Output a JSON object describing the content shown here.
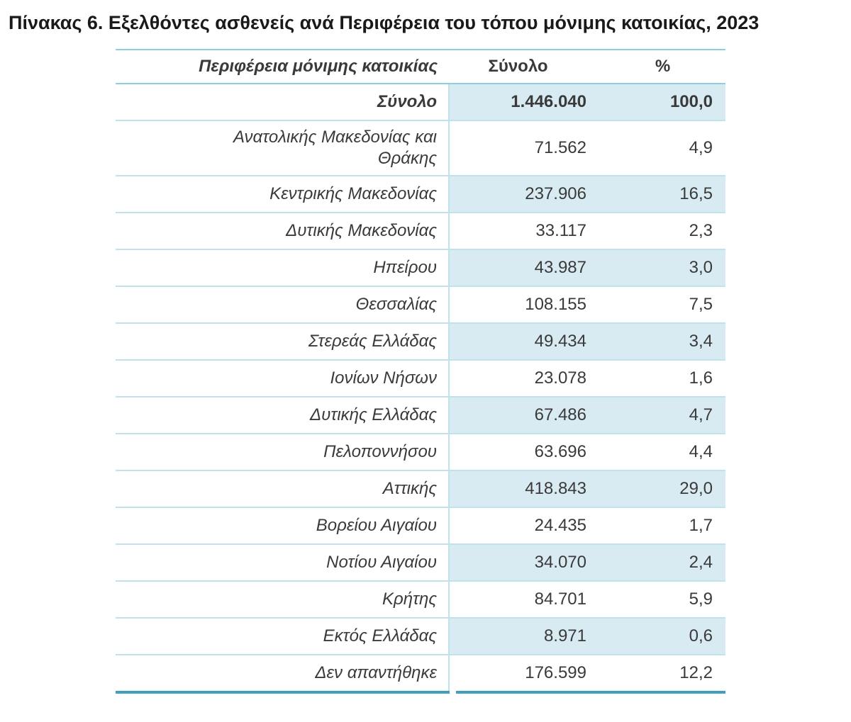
{
  "title": "Πίνακας 6. Εξελθόντες ασθενείς ανά Περιφέρεια του τόπου μόνιμης κατοικίας, 2023",
  "table": {
    "headers": {
      "region": "Περιφέρεια μόνιμης κατοικίας",
      "total": "Σύνολο",
      "percent": "%"
    },
    "rows": [
      {
        "region": "Σύνολο",
        "total": "1.446.040",
        "percent": "100,0",
        "is_total": true,
        "shaded": true
      },
      {
        "region": "Ανατολικής Μακεδονίας και Θράκης",
        "total": "71.562",
        "percent": "4,9",
        "is_total": false,
        "shaded": false
      },
      {
        "region": "Κεντρικής Μακεδονίας",
        "total": "237.906",
        "percent": "16,5",
        "is_total": false,
        "shaded": true
      },
      {
        "region": "Δυτικής Μακεδονίας",
        "total": "33.117",
        "percent": "2,3",
        "is_total": false,
        "shaded": false
      },
      {
        "region": "Ηπείρου",
        "total": "43.987",
        "percent": "3,0",
        "is_total": false,
        "shaded": true
      },
      {
        "region": "Θεσσαλίας",
        "total": "108.155",
        "percent": "7,5",
        "is_total": false,
        "shaded": false
      },
      {
        "region": "Στερεάς Ελλάδας",
        "total": "49.434",
        "percent": "3,4",
        "is_total": false,
        "shaded": true
      },
      {
        "region": "Ιονίων Νήσων",
        "total": "23.078",
        "percent": "1,6",
        "is_total": false,
        "shaded": false
      },
      {
        "region": "Δυτικής Ελλάδας",
        "total": "67.486",
        "percent": "4,7",
        "is_total": false,
        "shaded": true
      },
      {
        "region": "Πελοποννήσου",
        "total": "63.696",
        "percent": "4,4",
        "is_total": false,
        "shaded": false
      },
      {
        "region": "Αττικής",
        "total": "418.843",
        "percent": "29,0",
        "is_total": false,
        "shaded": true
      },
      {
        "region": "Βορείου Αιγαίου",
        "total": "24.435",
        "percent": "1,7",
        "is_total": false,
        "shaded": false
      },
      {
        "region": "Νοτίου Αιγαίου",
        "total": "34.070",
        "percent": "2,4",
        "is_total": false,
        "shaded": true
      },
      {
        "region": "Κρήτης",
        "total": "84.701",
        "percent": "5,9",
        "is_total": false,
        "shaded": false
      },
      {
        "region": "Εκτός Ελλάδας",
        "total": "8.971",
        "percent": "0,6",
        "is_total": false,
        "shaded": true
      },
      {
        "region": "Δεν απαντήθηκε",
        "total": "176.599",
        "percent": "12,2",
        "is_total": false,
        "shaded": false
      }
    ]
  },
  "colors": {
    "shaded_row_fill": "#d9ebf2",
    "grid_line": "#bfe2ec",
    "header_line": "#8ccfe0",
    "bottom_border": "#3e9fbf",
    "body_text": "#3a3a3a",
    "title_text": "#1a1a1a"
  }
}
